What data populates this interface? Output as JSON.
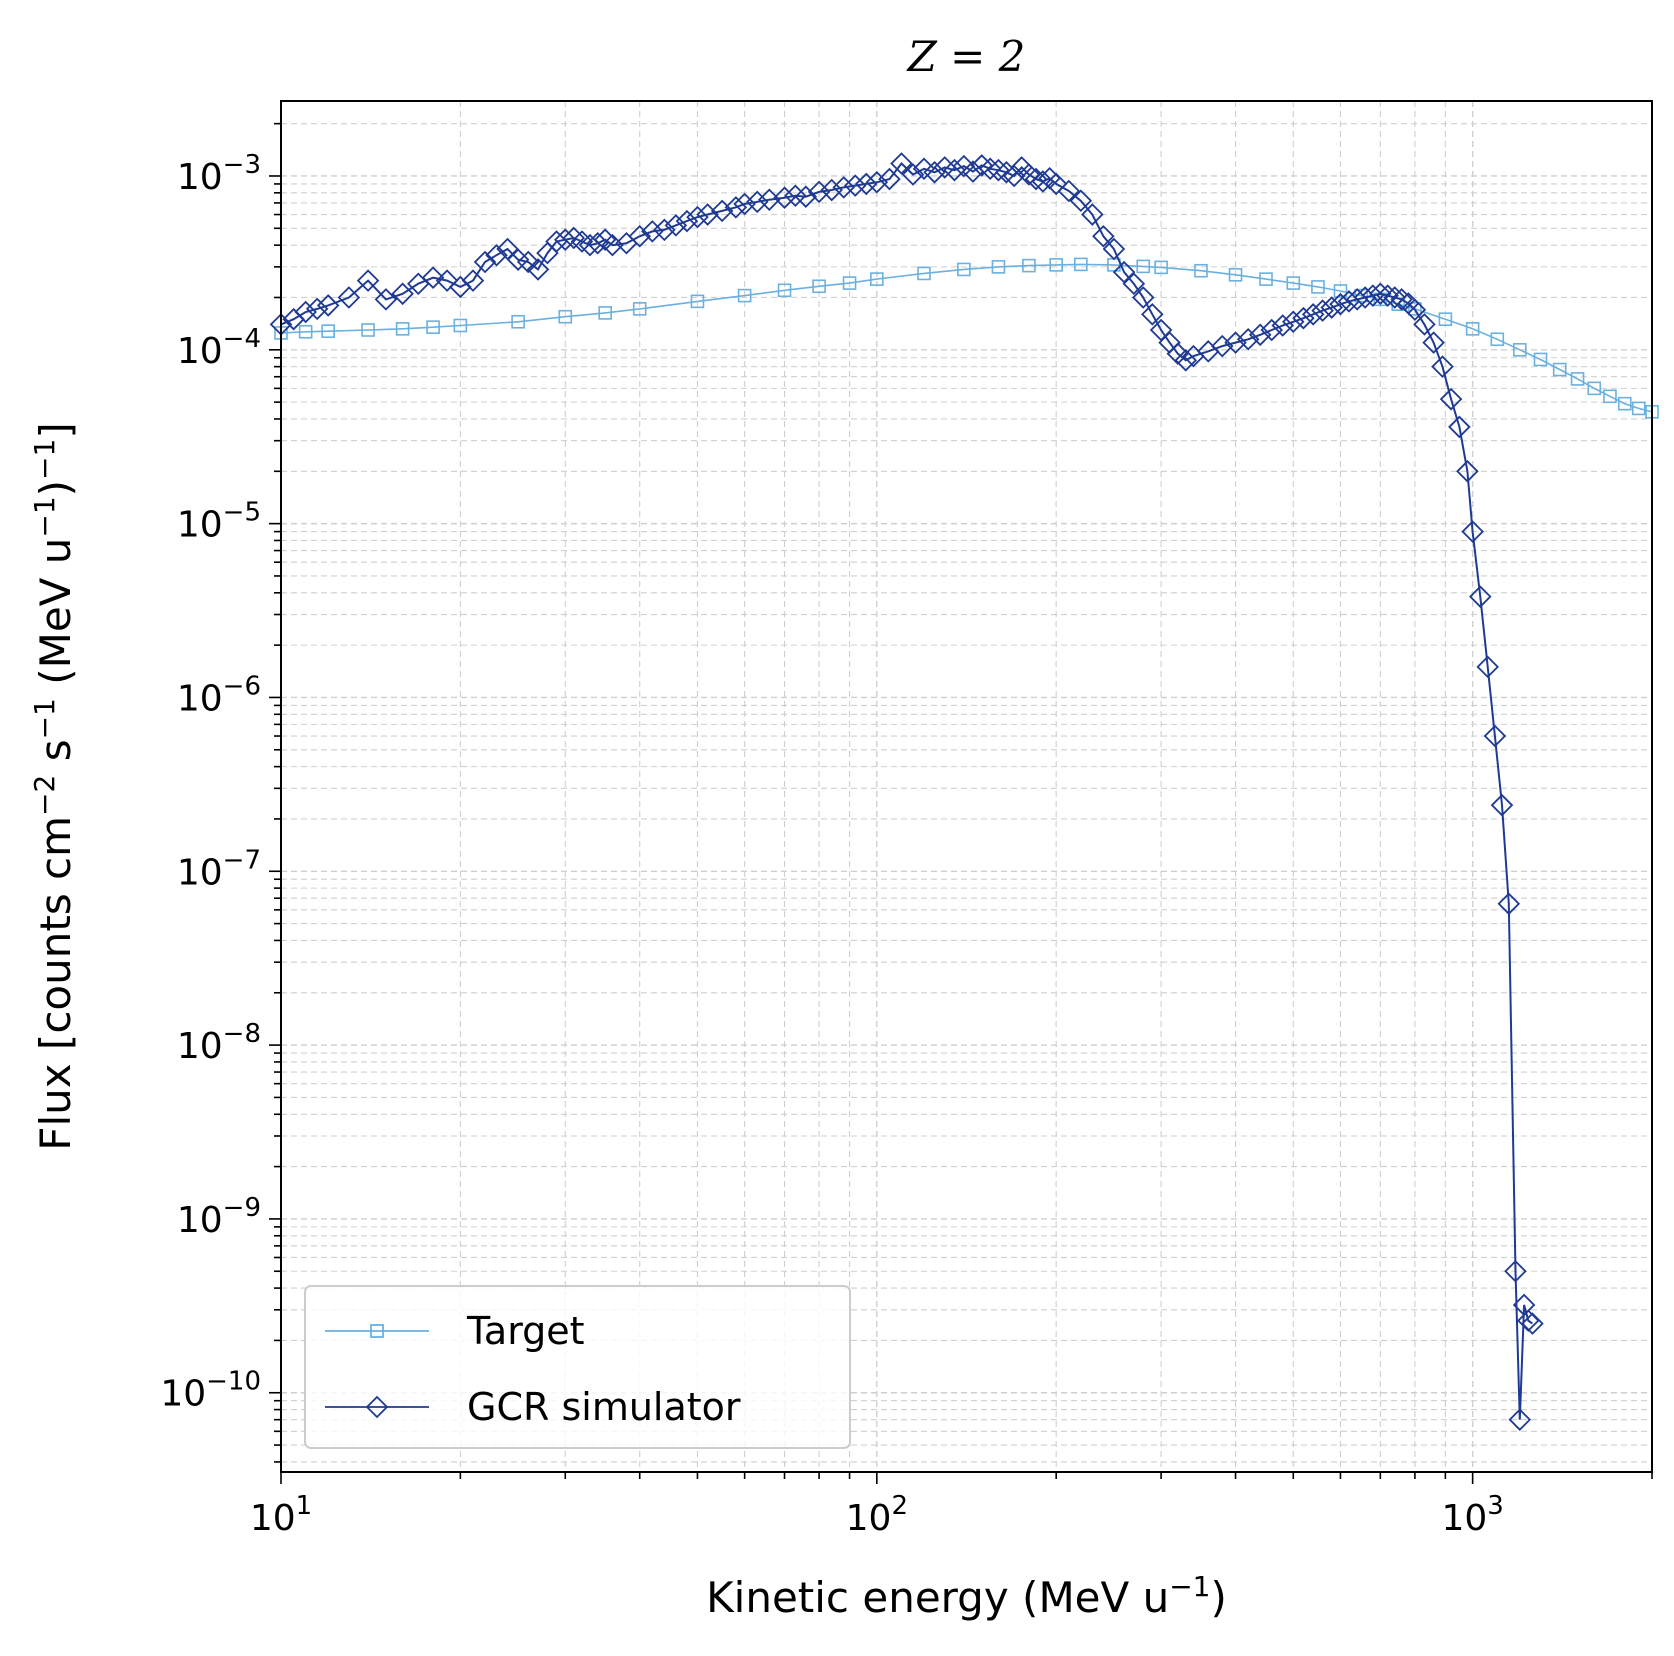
{
  "chart_data": {
    "type": "line",
    "title": {
      "base": "Z = 2"
    },
    "xlabel": {
      "base": "Kinetic energy (MeV u",
      "sup": "−1",
      "tail": ")"
    },
    "ylabel": {
      "p1": "Flux [counts cm",
      "s1": "−2",
      "p2": " s",
      "s2": "−1",
      "p3": " (MeV u",
      "s3": "−1",
      "p4": ")",
      "s4": "−1",
      "p5": "]"
    },
    "x_scale": "log",
    "y_scale": "log",
    "xlim": [
      10,
      2000
    ],
    "ylim": [
      3.5e-11,
      0.0027
    ],
    "grid": true,
    "legend_position": "lower-left",
    "x_ticks": [
      {
        "value": 10,
        "base": "10",
        "exp": "1"
      },
      {
        "value": 100,
        "base": "10",
        "exp": "2"
      },
      {
        "value": 1000,
        "base": "10",
        "exp": "3"
      }
    ],
    "y_ticks": [
      {
        "value": 0.001,
        "base": "10",
        "exp": "−3"
      },
      {
        "value": 0.0001,
        "base": "10",
        "exp": "−4"
      },
      {
        "value": 1e-05,
        "base": "10",
        "exp": "−5"
      },
      {
        "value": 1e-06,
        "base": "10",
        "exp": "−6"
      },
      {
        "value": 1e-07,
        "base": "10",
        "exp": "−7"
      },
      {
        "value": 1e-08,
        "base": "10",
        "exp": "−8"
      },
      {
        "value": 1e-09,
        "base": "10",
        "exp": "−9"
      },
      {
        "value": 1e-10,
        "base": "10",
        "exp": "−10"
      }
    ],
    "series": [
      {
        "name": "Target",
        "color": "#6ab0e0",
        "marker": "square",
        "x": [
          10,
          11,
          12,
          14,
          16,
          18,
          20,
          25,
          30,
          35,
          40,
          50,
          60,
          70,
          80,
          90,
          100,
          120,
          140,
          160,
          180,
          200,
          220,
          250,
          280,
          300,
          350,
          400,
          450,
          500,
          550,
          600,
          650,
          700,
          750,
          800,
          900,
          1000,
          1100,
          1200,
          1300,
          1400,
          1500,
          1600,
          1700,
          1800,
          1900,
          2000
        ],
        "y": [
          0.000125,
          0.000127,
          0.000128,
          0.00013,
          0.000132,
          0.000135,
          0.000138,
          0.000145,
          0.000155,
          0.000163,
          0.000172,
          0.00019,
          0.000205,
          0.00022,
          0.000232,
          0.000242,
          0.000255,
          0.000275,
          0.00029,
          0.0003,
          0.000305,
          0.000308,
          0.00031,
          0.000308,
          0.000302,
          0.000298,
          0.000285,
          0.00027,
          0.000255,
          0.000242,
          0.00023,
          0.000218,
          0.000205,
          0.000195,
          0.000183,
          0.000172,
          0.00015,
          0.000132,
          0.000115,
          0.0001,
          8.8e-05,
          7.7e-05,
          6.8e-05,
          6e-05,
          5.4e-05,
          4.9e-05,
          4.6e-05,
          4.4e-05
        ]
      },
      {
        "name": "GCR simulator",
        "color": "#1f3a93",
        "marker": "diamond",
        "x": [
          10,
          10.5,
          11,
          11.5,
          12,
          13,
          14,
          15,
          16,
          17,
          18,
          19,
          20,
          21,
          22,
          23,
          24,
          25,
          26,
          27,
          28,
          29,
          30,
          31,
          32,
          33,
          34,
          35,
          36,
          38,
          40,
          42,
          44,
          46,
          48,
          50,
          52,
          55,
          58,
          60,
          63,
          66,
          70,
          73,
          76,
          80,
          84,
          88,
          92,
          96,
          100,
          105,
          110,
          115,
          120,
          125,
          130,
          135,
          140,
          145,
          150,
          155,
          160,
          165,
          170,
          175,
          180,
          185,
          190,
          195,
          200,
          210,
          220,
          230,
          240,
          250,
          260,
          270,
          280,
          290,
          300,
          310,
          320,
          330,
          340,
          360,
          380,
          400,
          420,
          440,
          460,
          480,
          500,
          520,
          540,
          560,
          580,
          600,
          620,
          640,
          660,
          680,
          700,
          720,
          740,
          760,
          780,
          800,
          830,
          860,
          890,
          920,
          950,
          980,
          1000,
          1030,
          1060,
          1090,
          1120,
          1150,
          1180,
          1200,
          1220,
          1240,
          1260
        ],
        "y": [
          0.00014,
          0.00015,
          0.000165,
          0.000172,
          0.00018,
          0.0002,
          0.00025,
          0.000195,
          0.00021,
          0.00024,
          0.00026,
          0.00025,
          0.00023,
          0.00025,
          0.00032,
          0.00035,
          0.00038,
          0.00033,
          0.00032,
          0.00029,
          0.00036,
          0.00042,
          0.00043,
          0.00044,
          0.00042,
          0.0004,
          0.00041,
          0.00043,
          0.0004,
          0.00041,
          0.00045,
          0.00048,
          0.00049,
          0.00052,
          0.00055,
          0.00058,
          0.0006,
          0.00063,
          0.00066,
          0.00069,
          0.00071,
          0.00073,
          0.00075,
          0.00077,
          0.00076,
          0.00081,
          0.00083,
          0.00086,
          0.00088,
          0.0009,
          0.00092,
          0.00096,
          0.00118,
          0.00102,
          0.0011,
          0.00105,
          0.00112,
          0.00108,
          0.00114,
          0.00106,
          0.00115,
          0.0011,
          0.00108,
          0.00105,
          0.001,
          0.00112,
          0.00102,
          0.00096,
          0.00093,
          0.00097,
          0.0009,
          0.00082,
          0.00072,
          0.0006,
          0.00045,
          0.00038,
          0.00028,
          0.00024,
          0.0002,
          0.00016,
          0.00013,
          0.00011,
          9.5e-05,
          8.7e-05,
          9.2e-05,
          9.8e-05,
          0.000105,
          0.00011,
          0.000115,
          0.000122,
          0.00013,
          0.000138,
          0.000145,
          0.000152,
          0.00016,
          0.000168,
          0.000175,
          0.000183,
          0.00019,
          0.000195,
          0.0002,
          0.000205,
          0.00021,
          0.000205,
          0.0002,
          0.000195,
          0.000185,
          0.00017,
          0.00014,
          0.00011,
          8e-05,
          5.2e-05,
          3.6e-05,
          2e-05,
          9e-06,
          3.8e-06,
          1.5e-06,
          6e-07,
          2.4e-07,
          6.5e-08,
          5e-10,
          7e-11,
          3.2e-10,
          2.6e-10,
          2.5e-10
        ]
      }
    ]
  }
}
